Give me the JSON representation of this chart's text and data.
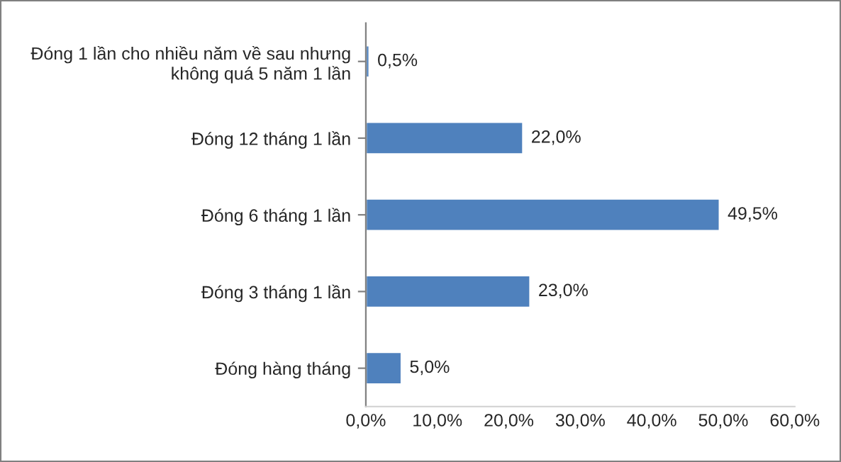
{
  "chart_data": {
    "type": "bar",
    "orientation": "horizontal",
    "categories": [
      "Đóng 1 lần cho nhiều năm về sau nhưng\nkhông quá 5 năm 1 lần",
      "Đóng 12 tháng 1 lần",
      "Đóng 6 tháng 1 lần",
      "Đóng 3 tháng 1 lần",
      "Đóng hàng tháng"
    ],
    "values": [
      0.5,
      22.0,
      49.5,
      23.0,
      5.0
    ],
    "value_labels": [
      "0,5%",
      "22,0%",
      "49,5%",
      "23,0%",
      "5,0%"
    ],
    "color": "#4f81bd",
    "xlim": [
      0,
      60
    ],
    "xticks": [
      {
        "value": 0,
        "label": "0,0%"
      },
      {
        "value": 10,
        "label": "10,0%"
      },
      {
        "value": 20,
        "label": "20,0%"
      },
      {
        "value": 30,
        "label": "30,0%"
      },
      {
        "value": 40,
        "label": "40,0%"
      },
      {
        "value": 50,
        "label": "50,0%"
      },
      {
        "value": 60,
        "label": "60,0%"
      }
    ],
    "grid": false,
    "legend": false
  }
}
